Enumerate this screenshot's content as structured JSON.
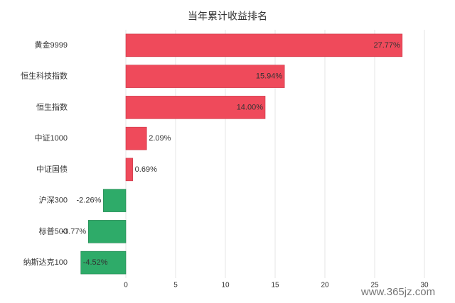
{
  "chart_data": {
    "type": "hbar",
    "title": "当年累计收益排名",
    "categories": [
      "黄金9999",
      "恒生科技指数",
      "恒生指数",
      "中证1000",
      "中证国债",
      "沪深300",
      "标普500",
      "纳斯达克100"
    ],
    "values": [
      27.77,
      15.94,
      14.0,
      2.09,
      0.69,
      -2.26,
      -3.77,
      -4.52
    ],
    "value_labels": [
      "27.77%",
      "15.94%",
      "14.00%",
      "2.09%",
      "0.69%",
      "-2.26%",
      "-3.77%",
      "-4.52%"
    ],
    "positive_color": "#ef4a5b",
    "negative_color": "#2eab69",
    "xlim": [
      -5,
      30
    ],
    "xticks": [
      0,
      5,
      10,
      15,
      20,
      25,
      30
    ],
    "grid": true,
    "watermark": "www.365jz.com"
  }
}
